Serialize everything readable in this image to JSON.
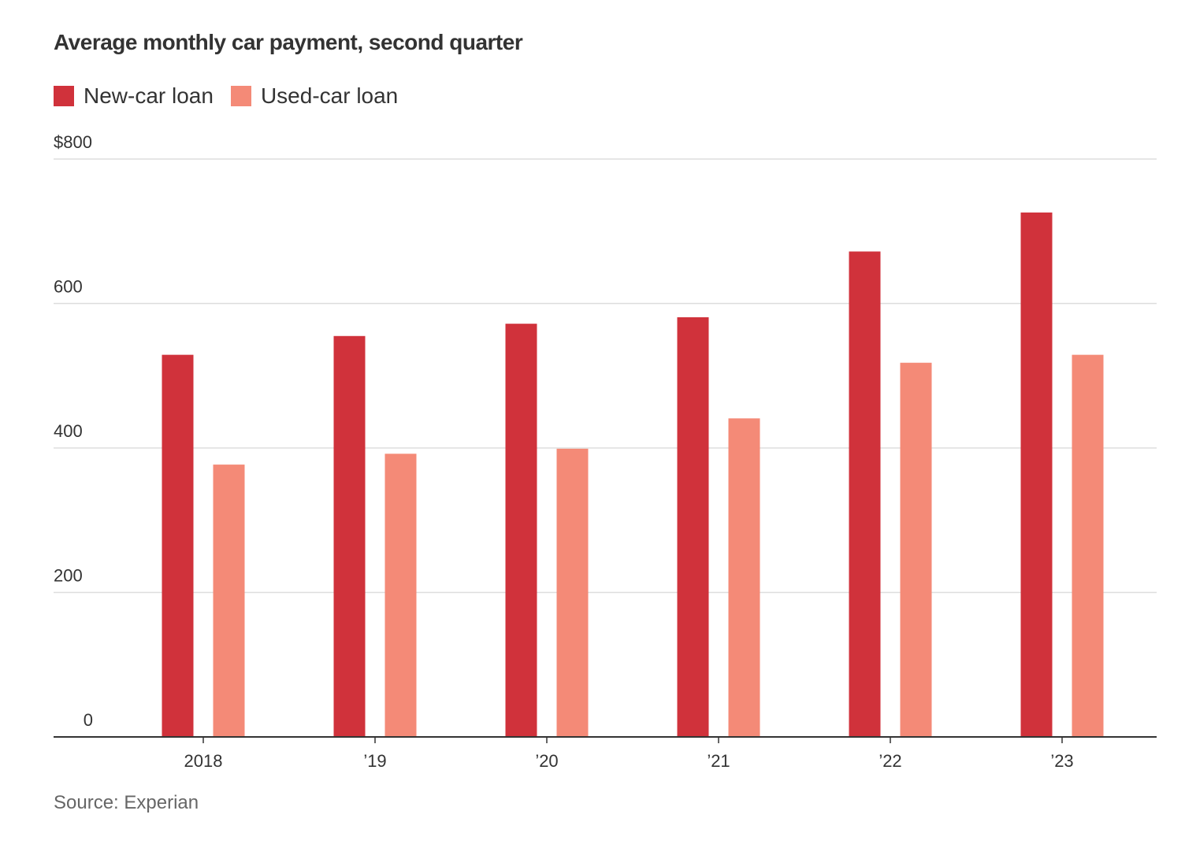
{
  "chart_data": {
    "type": "bar",
    "title": "Average monthly car payment, second quarter",
    "categories": [
      "2018",
      "’19",
      "’20",
      "’21",
      "’22",
      "’23"
    ],
    "series": [
      {
        "name": "New-car loan",
        "color": "#d0323b",
        "values": [
          529,
          555,
          572,
          581,
          672,
          726
        ]
      },
      {
        "name": "Used-car loan",
        "color": "#f48a77",
        "values": [
          377,
          392,
          399,
          441,
          518,
          529
        ]
      }
    ],
    "ylim": [
      0,
      800
    ],
    "yticks": [
      0,
      200,
      400,
      600,
      800
    ],
    "ytick_labels": [
      "0",
      "200",
      "400",
      "600",
      "$800"
    ],
    "xlabel": "",
    "ylabel": "",
    "grid": true,
    "legend_position": "top-left",
    "source": "Source: Experian"
  }
}
